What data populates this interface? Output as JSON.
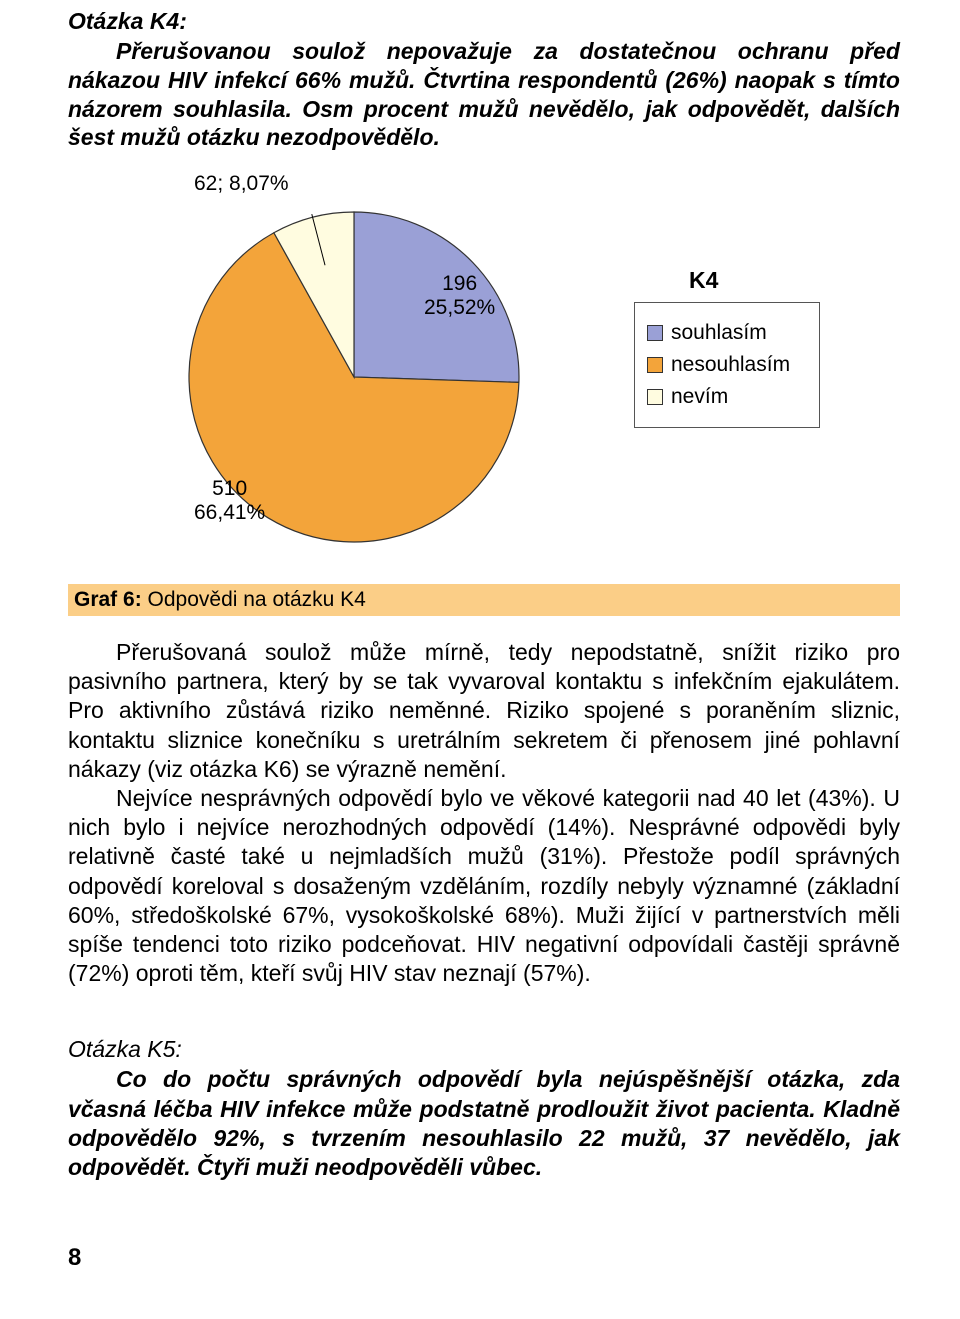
{
  "k4": {
    "heading": "Otázka K4:",
    "intro": "Přerušovanou soulož nepovažuje za dostatečnou ochranu před nákazou HIV infekcí 66% mužů. Čtvrtina respondentů (26%) naopak s tímto názorem souhlasila. Osm procent mužů nevědělo, jak odpovědět, dalších šest mužů otázku nezodpovědělo."
  },
  "chart": {
    "type": "pie",
    "title": "K4",
    "radius": 165,
    "slice_label_fontsize": 21,
    "slices": [
      {
        "key": "souhlasim",
        "label": "souhlasím",
        "count": 196,
        "pct_text": "25,52%",
        "pct": 25.52,
        "color": "#9aa0d6",
        "count_line": "196"
      },
      {
        "key": "nesouhlasim",
        "label": "nesouhlasím",
        "count": 510,
        "pct_text": "66,41%",
        "pct": 66.41,
        "color": "#f3a43a",
        "count_line": "510"
      },
      {
        "key": "nevim",
        "label": "nevím",
        "count": 62,
        "pct_text": "8,07%",
        "pct": 8.07,
        "color": "#fffce0",
        "count_line": "62; 8,07%"
      }
    ],
    "stroke": "#333333",
    "stroke_width": 1.2,
    "start_angle_deg": 0
  },
  "legend": {
    "title": "K4",
    "items": [
      {
        "label": "souhlasím",
        "color": "#9aa0d6"
      },
      {
        "label": "nesouhlasím",
        "color": "#f3a43a"
      },
      {
        "label": "nevím",
        "color": "#fffce0"
      }
    ],
    "box_border": "#555555"
  },
  "graf_caption": {
    "bold": "Graf 6:",
    "rest": " Odpovědi na otázku K4",
    "bg": "#fbce87"
  },
  "body": {
    "p1": "Přerušovaná soulož může mírně, tedy nepodstatně, snížit riziko pro pasivního partnera, který by se tak vyvaroval kontaktu s infekčním ejakulátem. Pro aktivního zůstává riziko neměnné.  Riziko spojené s poraněním sliznic, kontaktu sliznice konečníku s uretrálním sekretem či přenosem jiné pohlavní nákazy (viz otázka K6) se výrazně nemění.",
    "p2": "Nejvíce nesprávných odpovědí bylo ve věkové kategorii nad 40 let (43%). U nich bylo i nejvíce nerozhodných odpovědí (14%). Nesprávné odpovědi byly relativně časté také u nejmladších mužů (31%). Přestože podíl správných odpovědí koreloval s dosaženým vzděláním, rozdíly nebyly významné (základní 60%, středoškolské 67%, vysokoškolské 68%). Muži žijící v partnerstvích měli spíše tendenci toto riziko podceňovat. HIV negativní odpovídali častěji správně (72%) oproti těm, kteří svůj HIV stav neznají (57%)."
  },
  "k5": {
    "heading": "Otázka K5:",
    "intro": "Co do počtu správných odpovědí byla nejúspěšnější otázka, zda včasná léčba HIV infekce může podstatně prodloužit život pacienta. Kladně odpovědělo 92%, s tvrzením nesouhlasilo 22 mužů, 37 nevědělo, jak odpovědět. Čtyři muži neodpověděli vůbec."
  },
  "page_num": "8"
}
